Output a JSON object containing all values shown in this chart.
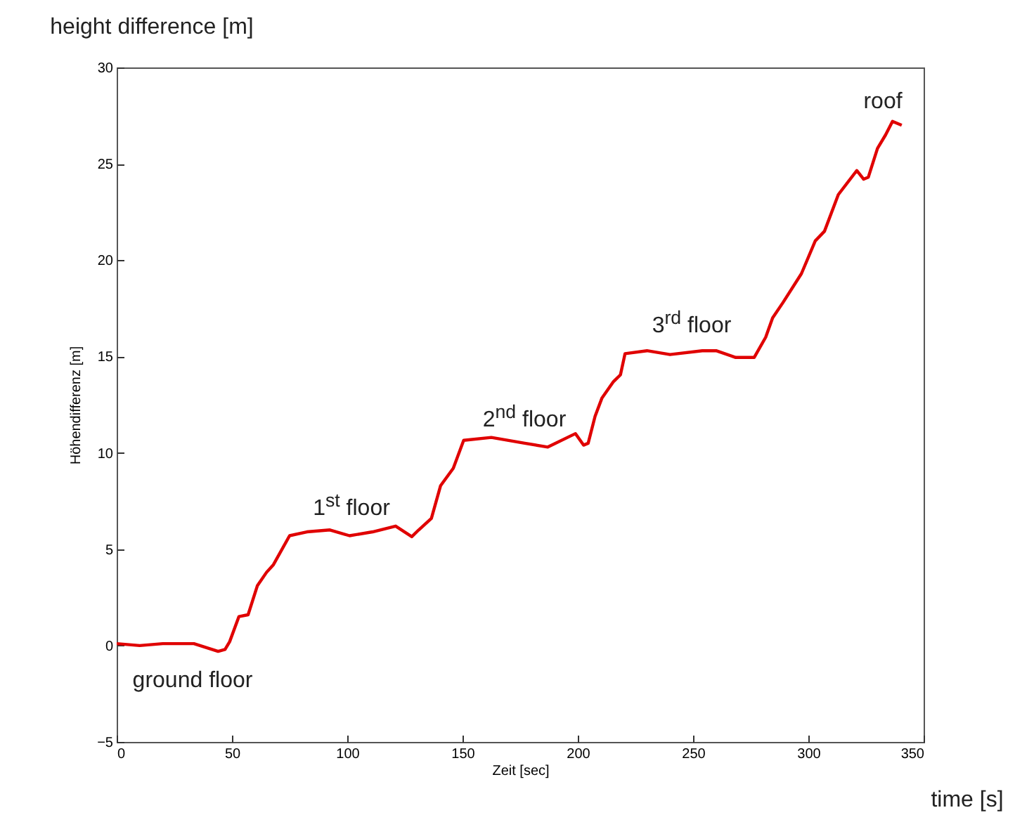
{
  "chart_data": {
    "type": "line",
    "xlabel": "Zeit [sec]",
    "ylabel": "Höhendifferenz [m]",
    "xlim": [
      0,
      350
    ],
    "ylim": [
      -5,
      30
    ],
    "xticks": [
      0,
      50,
      100,
      150,
      200,
      250,
      300,
      350
    ],
    "yticks": [
      -5,
      0,
      5,
      10,
      15,
      20,
      25,
      30
    ],
    "grid": false,
    "series": [
      {
        "color": "#e00000",
        "x": [
          0,
          10,
          20,
          33.5,
          44,
          47,
          49,
          53,
          57,
          61,
          65,
          68,
          75,
          82.5,
          92.5,
          101,
          111,
          121,
          128,
          131,
          136.5,
          140.5,
          146,
          150.5,
          162.5,
          177,
          187,
          199,
          202.5,
          204.5,
          207.5,
          210.5,
          215.5,
          218.5,
          220.5,
          230,
          240,
          254,
          260,
          268.5,
          276.5,
          281.5,
          284.5,
          289,
          297,
          303,
          307,
          313,
          321,
          324,
          326,
          330,
          333.5,
          336.5,
          340.5
        ],
        "values": [
          0.1,
          0,
          0.1,
          0.1,
          -0.3,
          -0.2,
          0.2,
          1.5,
          1.6,
          3.1,
          3.8,
          4.2,
          5.7,
          5.9,
          6.0,
          5.7,
          5.9,
          6.2,
          5.65,
          6.0,
          6.6,
          8.3,
          9.2,
          10.65,
          10.8,
          10.5,
          10.3,
          11.0,
          10.4,
          10.5,
          11.9,
          12.85,
          13.7,
          14.05,
          15.15,
          15.3,
          15.1,
          15.3,
          15.3,
          14.95,
          14.95,
          16.0,
          17.0,
          17.8,
          19.3,
          21.0,
          21.5,
          23.4,
          24.65,
          24.2,
          24.3,
          25.8,
          26.5,
          27.2,
          27.0
        ]
      }
    ],
    "annotations": [
      "height difference [m]",
      "time [s]",
      "ground floor",
      "1$^{st}$ floor",
      "2$^{nd}$ floor",
      "3$^{rd}$ floor",
      "roof"
    ]
  }
}
